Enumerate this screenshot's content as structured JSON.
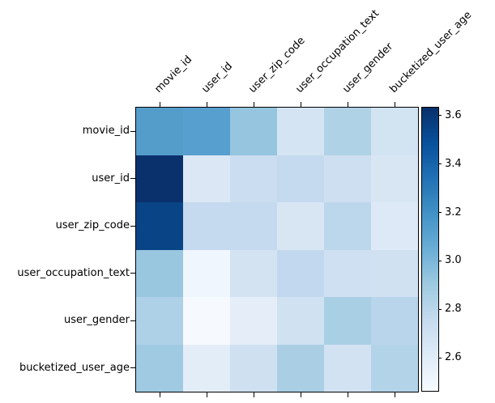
{
  "chart_data": {
    "type": "heatmap",
    "title": "",
    "xlabel": "",
    "ylabel": "",
    "grid": false,
    "rows": [
      "movie_id",
      "user_id",
      "user_zip_code",
      "user_occupation_text",
      "user_gender",
      "bucketized_user_age"
    ],
    "columns": [
      "movie_id",
      "user_id",
      "user_zip_code",
      "user_occupation_text",
      "user_gender",
      "bucketized_user_age"
    ],
    "values": [
      [
        3.13,
        3.12,
        2.92,
        2.66,
        2.82,
        2.66
      ],
      [
        3.62,
        2.62,
        2.7,
        2.74,
        2.7,
        2.63
      ],
      [
        3.54,
        2.75,
        2.75,
        2.63,
        2.78,
        2.6
      ],
      [
        2.9,
        2.49,
        2.66,
        2.76,
        2.7,
        2.69
      ],
      [
        2.83,
        2.46,
        2.56,
        2.69,
        2.85,
        2.79
      ],
      [
        2.87,
        2.57,
        2.7,
        2.85,
        2.67,
        2.82
      ]
    ],
    "cell_colors": [
      [
        "#549dcb",
        "#579fce",
        "#95c5df",
        "#d4e4f2",
        "#b0d2e7",
        "#d2e3f1"
      ],
      [
        "#0b316d",
        "#dbe7f5",
        "#cbddf0",
        "#c6daef",
        "#cedff1",
        "#d8e6f4"
      ],
      [
        "#094586",
        "#c5daee",
        "#c5daee",
        "#d8e6f4",
        "#bcd6ec",
        "#dde9f6"
      ],
      [
        "#99c7e0",
        "#f0f6fd",
        "#d3e3f2",
        "#c2d8ee",
        "#cfe0f2",
        "#d0e1f2"
      ],
      [
        "#aed1e7",
        "#f6faff",
        "#e4edf8",
        "#d0e1f2",
        "#a9cfe5",
        "#b9d5eb"
      ],
      [
        "#9fcae2",
        "#e3edf8",
        "#cfe0f1",
        "#aacfe5",
        "#d2e2f2",
        "#b3d3e8"
      ]
    ],
    "colormap_name": "Blues",
    "colormap_anchors": [
      "#f7fbff",
      "#deebf7",
      "#c6dbef",
      "#9ecae1",
      "#6baed6",
      "#4292c6",
      "#2171b5",
      "#08519c",
      "#08306b"
    ],
    "colorbar": {
      "position": "right",
      "vmin": 2.463,
      "vmax": 3.633,
      "tick_values": [
        3.6,
        3.4,
        3.2,
        3.0,
        2.8,
        2.6
      ],
      "tick_labels": [
        "3.6",
        "3.4",
        "3.2",
        "3.0",
        "2.8",
        "2.6"
      ]
    },
    "frame_color": "#000000",
    "text_color": "#000000",
    "background_color": "#ffffff"
  }
}
